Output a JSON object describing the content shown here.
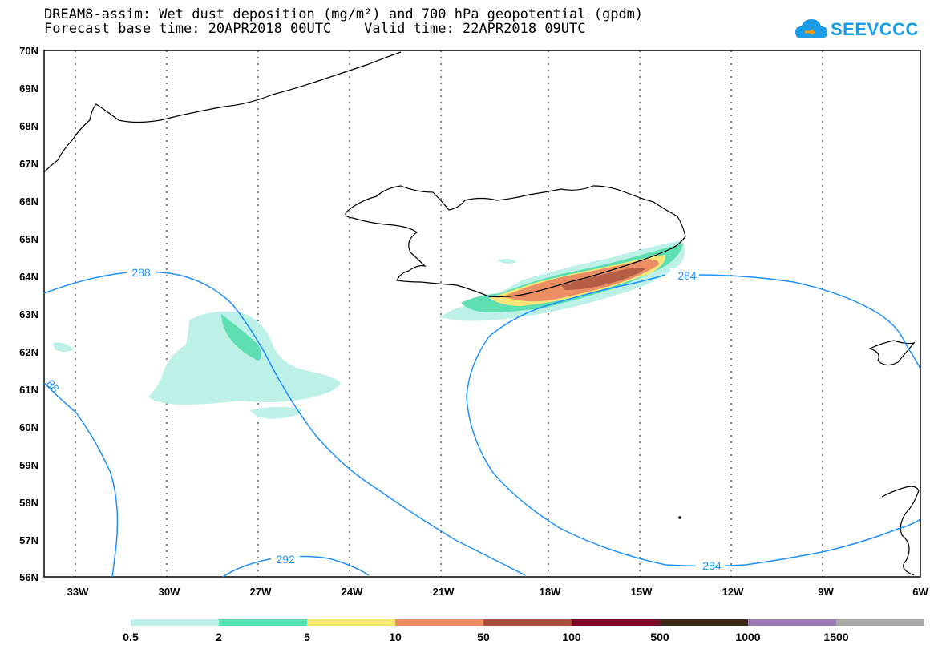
{
  "title_line1": "DREAM8-assim: Wet dust deposition (mg/m²) and 700 hPa geopotential (gpdm)",
  "title_line2": "Forecast base time: 20APR2018 00UTC    Valid time: 22APR2018 09UTC",
  "logo": {
    "text": "SEEVCCC",
    "icon": "cloud-icon",
    "color": "#1a9ce8"
  },
  "lat_labels": [
    "70N",
    "69N",
    "68N",
    "67N",
    "66N",
    "65N",
    "64N",
    "63N",
    "62N",
    "61N",
    "60N",
    "59N",
    "58N",
    "57N",
    "56N"
  ],
  "lon_labels": [
    "33W",
    "30W",
    "27W",
    "24W",
    "21W",
    "18W",
    "15W",
    "12W",
    "9W",
    "6W"
  ],
  "contour_labels": [
    "288",
    "284",
    "292",
    "284",
    "88"
  ],
  "legend": {
    "labels": [
      "0.5",
      "2",
      "5",
      "10",
      "50",
      "100",
      "500",
      "1000",
      "1500"
    ],
    "colors": [
      "#bdf0e6",
      "#5ddfb2",
      "#f5e67a",
      "#eb8e64",
      "#a9513f",
      "#7a0a2a",
      "#3b2a1a",
      "#9c7cb5",
      "#a8a8a8"
    ]
  },
  "colors": {
    "contour": "#1e90ff",
    "coast": "#000000"
  }
}
